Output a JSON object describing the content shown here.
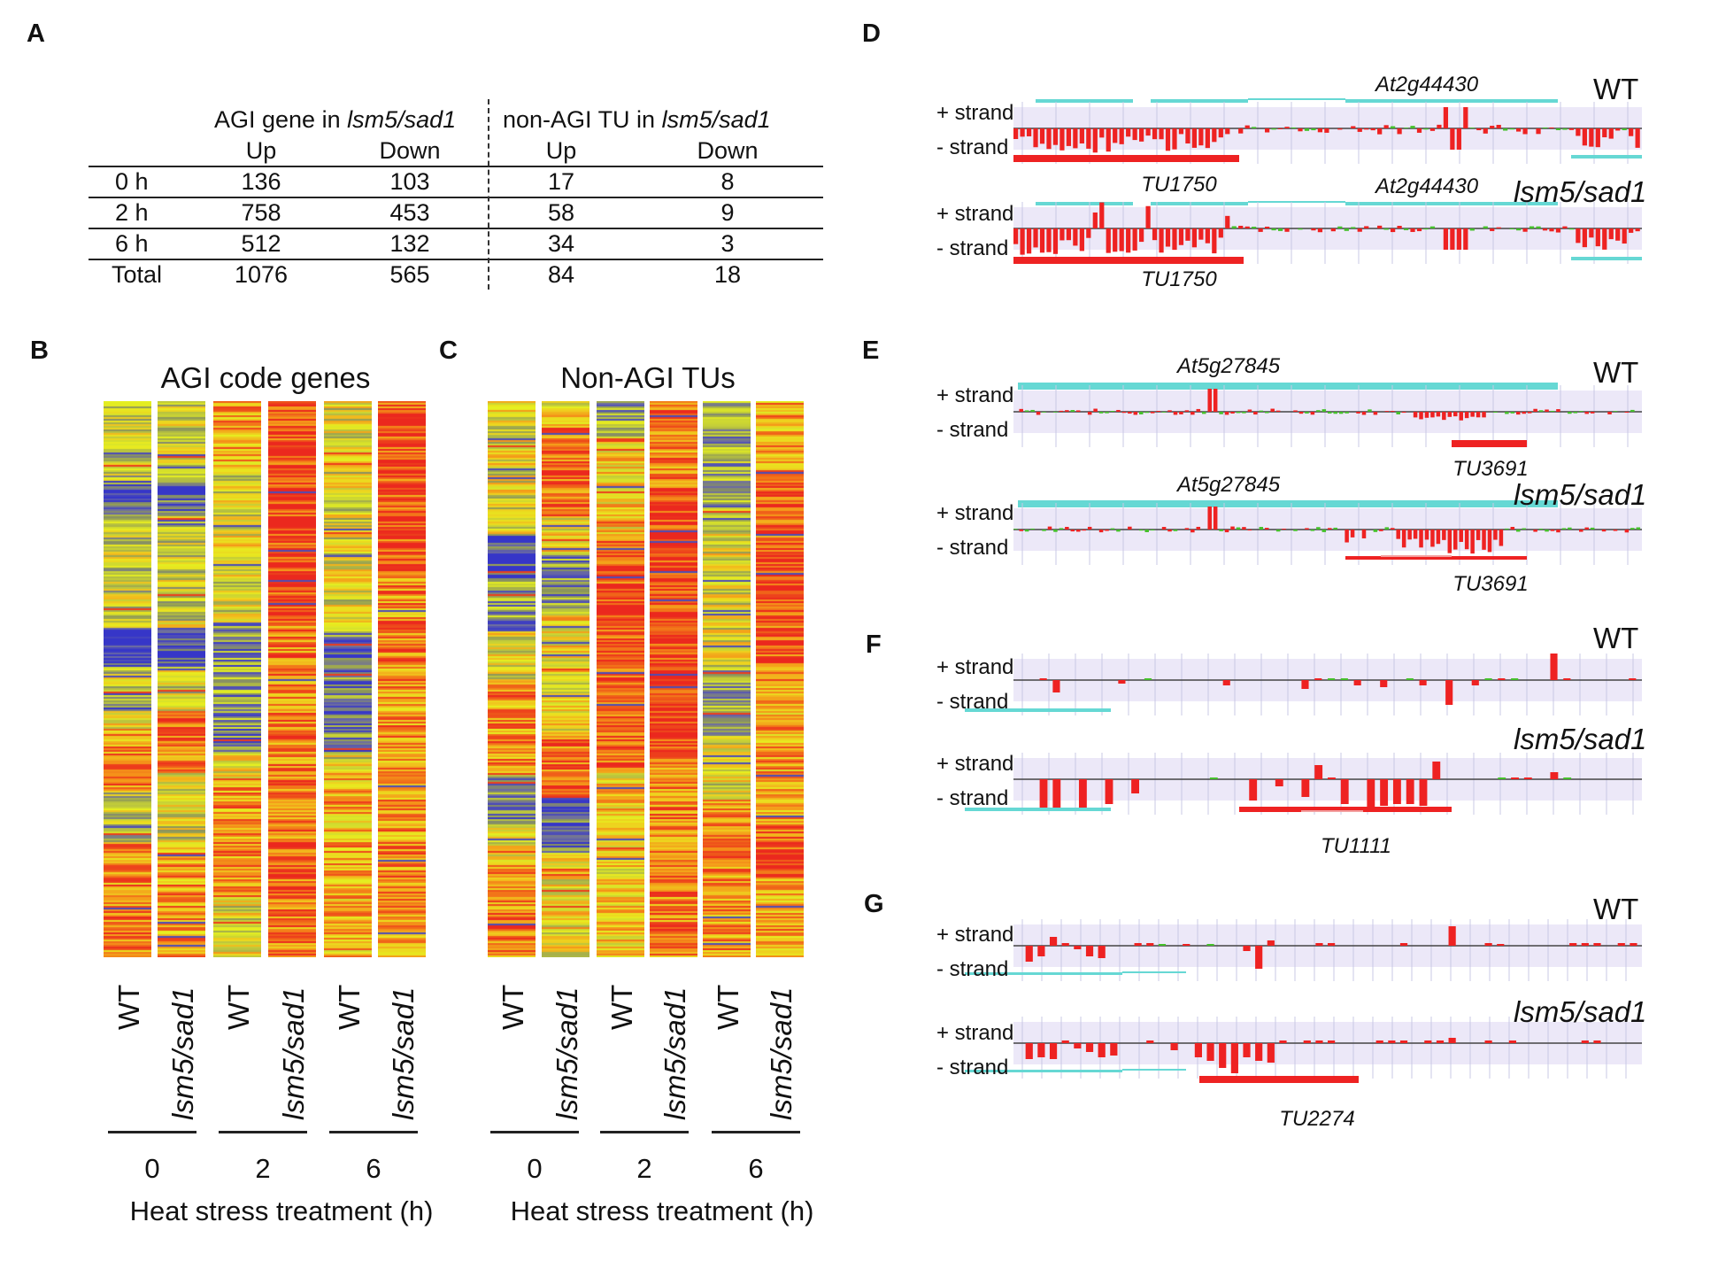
{
  "panels": {
    "a": "A",
    "b": "B",
    "c": "C",
    "d": "D",
    "e": "E",
    "f": "F",
    "g": "G"
  },
  "table": {
    "agi_header_prefix": "AGI gene in ",
    "agi_header_italic": "lsm5/sad1",
    "nonagi_header_prefix": "non-AGI TU  in  ",
    "nonagi_header_italic": "lsm5/sad1",
    "sub": [
      "Up",
      "Down",
      "Up",
      "Down"
    ],
    "rows": [
      {
        "label": "0 h",
        "values": [
          "136",
          "103",
          "17",
          "8"
        ]
      },
      {
        "label": "2 h",
        "values": [
          "758",
          "453",
          "58",
          "9"
        ]
      },
      {
        "label": "6 h",
        "values": [
          "512",
          "132",
          "34",
          "3"
        ]
      },
      {
        "label": "Total",
        "values": [
          "1076",
          "565",
          "84",
          "18"
        ]
      }
    ]
  },
  "heatmap_b": {
    "title": "AGI code genes"
  },
  "heatmap_c": {
    "title": "Non-AGI TUs"
  },
  "column_labels": [
    "WT",
    "lsm5/sad1",
    "WT",
    "lsm5/sad1",
    "WT",
    "lsm5/sad1"
  ],
  "time_groups": [
    "0",
    "2",
    "6"
  ],
  "axis_title": "Heat stress treatment (h)",
  "strand_plus": "+ strand",
  "strand_minus": "- strand",
  "genotype_wt": "WT",
  "genotype_mut": "lsm5/sad1",
  "tracks": {
    "d": {
      "gene": "At2g44430",
      "tu": "TU1750"
    },
    "e": {
      "gene": "At5g27845",
      "tu": "TU3691"
    },
    "f": {
      "tu": "TU1111"
    },
    "g": {
      "tu": "TU2274"
    }
  },
  "colors": {
    "red": "#ee2222",
    "cyan": "#66d8d4",
    "green": "#44c02a",
    "band": "#ece8f8",
    "blue": "#3636c8",
    "yellow": "#e6f020",
    "orange": "#f08a18"
  }
}
